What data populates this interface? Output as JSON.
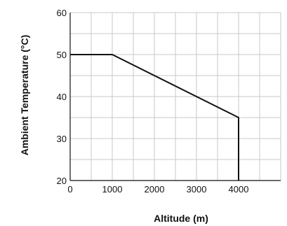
{
  "chart_data": {
    "type": "line",
    "title": "",
    "xlabel": "Altitude (m)",
    "ylabel": "Ambient Temperature (°C)",
    "xlim": [
      0,
      5000
    ],
    "ylim": [
      20,
      60
    ],
    "x_ticks": [
      0,
      1000,
      2000,
      3000,
      4000
    ],
    "y_ticks": [
      20,
      30,
      40,
      50,
      60
    ],
    "grid": true,
    "grid_x_step": 500,
    "grid_y_step": 5,
    "series": [
      {
        "x": [
          0,
          1000,
          4000,
          4000
        ],
        "y": [
          50,
          50,
          35,
          20
        ]
      }
    ],
    "colors": {
      "line": "#111111",
      "grid": "#c8c8c8",
      "axis": "#111111"
    }
  }
}
